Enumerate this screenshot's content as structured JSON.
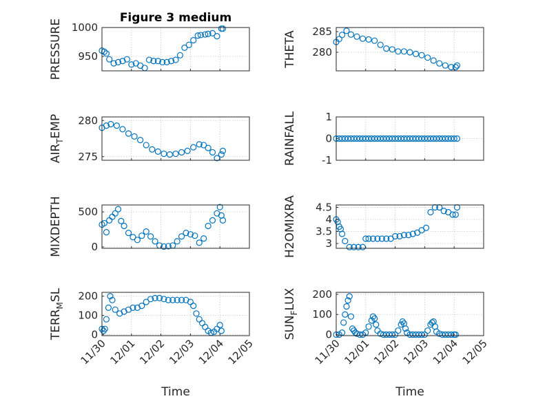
{
  "chart_data": [
    {
      "id": "pressure",
      "type": "scatter",
      "title": "Figure 3 medium",
      "ylabel": "PRESSURE",
      "ylabel_sub": "",
      "ylabel_tail": "",
      "ylim": [
        925,
        1000
      ],
      "yticks": [
        950,
        1000
      ],
      "xlim": [
        0,
        5
      ],
      "xticks": [
        "11/30",
        "12/01",
        "12/02",
        "12/03",
        "12/04",
        "12/05"
      ],
      "xlabel": "",
      "x": [
        0,
        0.08,
        0.15,
        0.25,
        0.4,
        0.55,
        0.7,
        0.85,
        1.0,
        1.15,
        1.3,
        1.45,
        1.6,
        1.75,
        1.9,
        2.05,
        2.2,
        2.35,
        2.5,
        2.65,
        2.8,
        2.95,
        3.1,
        3.25,
        3.35,
        3.5,
        3.6,
        3.75,
        3.9,
        4.05,
        4.1
      ],
      "y": [
        960,
        958,
        955,
        945,
        938,
        940,
        942,
        945,
        936,
        938,
        934,
        930,
        944,
        942,
        942,
        940,
        940,
        942,
        944,
        952,
        965,
        970,
        978,
        986,
        987,
        988,
        989,
        990,
        985,
        998,
        998
      ]
    },
    {
      "id": "theta",
      "type": "scatter",
      "title": "",
      "ylabel": "THETA",
      "ylabel_sub": "",
      "ylabel_tail": "",
      "ylim": [
        275.5,
        286
      ],
      "yticks": [
        280,
        285
      ],
      "xlim": [
        0,
        5
      ],
      "xticks": [
        "11/30",
        "12/01",
        "12/02",
        "12/03",
        "12/04",
        "12/05"
      ],
      "xlabel": "",
      "x": [
        0,
        0.1,
        0.2,
        0.35,
        0.5,
        0.7,
        0.9,
        1.1,
        1.3,
        1.5,
        1.7,
        1.9,
        2.1,
        2.3,
        2.5,
        2.7,
        2.9,
        3.1,
        3.3,
        3.5,
        3.7,
        3.9,
        4.05,
        4.1
      ],
      "y": [
        282.5,
        283.2,
        284.2,
        285.2,
        284.3,
        283.8,
        283.3,
        283.1,
        282.8,
        281.8,
        280.9,
        280.7,
        280.2,
        280.2,
        280.0,
        279.6,
        279.3,
        278.7,
        278.0,
        277.3,
        276.8,
        276.4,
        276.4,
        276.8
      ]
    },
    {
      "id": "air_temp",
      "type": "scatter",
      "title": "",
      "ylabel": "AIR",
      "ylabel_sub": "T",
      "ylabel_tail": "EMP",
      "ylim": [
        274.5,
        280.5
      ],
      "yticks": [
        275,
        280
      ],
      "xlim": [
        0,
        5
      ],
      "xticks": [
        "11/30",
        "12/01",
        "12/02",
        "12/03",
        "12/04",
        "12/05"
      ],
      "xlabel": "",
      "x": [
        0,
        0.15,
        0.3,
        0.5,
        0.7,
        0.9,
        1.1,
        1.3,
        1.5,
        1.7,
        1.9,
        2.1,
        2.3,
        2.5,
        2.7,
        2.9,
        3.1,
        3.3,
        3.45,
        3.6,
        3.75,
        3.9,
        4.05,
        4.1
      ],
      "y": [
        279.0,
        279.3,
        279.5,
        279.3,
        278.8,
        278.2,
        277.8,
        277.3,
        276.6,
        276.0,
        275.7,
        275.4,
        275.3,
        275.4,
        275.6,
        275.8,
        276.3,
        276.7,
        276.6,
        276.2,
        275.6,
        274.8,
        275.3,
        275.8
      ]
    },
    {
      "id": "rainfall",
      "type": "scatter",
      "title": "",
      "ylabel": "RAINFALL",
      "ylabel_sub": "",
      "ylabel_tail": "",
      "ylim": [
        -1,
        1
      ],
      "yticks": [
        -1,
        0,
        1
      ],
      "xlim": [
        0,
        5
      ],
      "xticks": [
        "11/30",
        "12/01",
        "12/02",
        "12/03",
        "12/04",
        "12/05"
      ],
      "xlabel": "",
      "x": [
        0,
        0.1,
        0.2,
        0.3,
        0.4,
        0.5,
        0.6,
        0.7,
        0.8,
        0.9,
        1.0,
        1.1,
        1.2,
        1.3,
        1.4,
        1.5,
        1.6,
        1.7,
        1.8,
        1.9,
        2.0,
        2.1,
        2.2,
        2.3,
        2.4,
        2.5,
        2.6,
        2.7,
        2.8,
        2.9,
        3.0,
        3.1,
        3.2,
        3.3,
        3.4,
        3.5,
        3.6,
        3.7,
        3.8,
        3.9,
        4.0,
        4.1
      ],
      "y": [
        0,
        0,
        0,
        0,
        0,
        0,
        0,
        0,
        0,
        0,
        0,
        0,
        0,
        0,
        0,
        0,
        0,
        0,
        0,
        0,
        0,
        0,
        0,
        0,
        0,
        0,
        0,
        0,
        0,
        0,
        0,
        0,
        0,
        0,
        0,
        0,
        0,
        0,
        0,
        0,
        0,
        0
      ]
    },
    {
      "id": "mixdepth",
      "type": "scatter",
      "title": "",
      "ylabel": "MIXDEPTH",
      "ylabel_sub": "",
      "ylabel_tail": "",
      "ylim": [
        -20,
        600
      ],
      "yticks": [
        0,
        500
      ],
      "xlim": [
        0,
        5
      ],
      "xticks": [
        "11/30",
        "12/01",
        "12/02",
        "12/03",
        "12/04",
        "12/05"
      ],
      "xlabel": "",
      "x": [
        0,
        0.08,
        0.15,
        0.25,
        0.35,
        0.45,
        0.55,
        0.65,
        0.75,
        0.9,
        1.05,
        1.2,
        1.35,
        1.5,
        1.65,
        1.8,
        1.95,
        2.1,
        2.25,
        2.4,
        2.55,
        2.7,
        2.85,
        3.0,
        3.15,
        3.3,
        3.45,
        3.6,
        3.75,
        3.9,
        4.0,
        4.05,
        4.1
      ],
      "y": [
        320,
        340,
        210,
        380,
        430,
        480,
        540,
        370,
        300,
        200,
        140,
        100,
        160,
        220,
        150,
        80,
        20,
        5,
        10,
        20,
        80,
        150,
        200,
        180,
        160,
        60,
        120,
        300,
        380,
        480,
        570,
        450,
        380
      ]
    },
    {
      "id": "h2omixra",
      "type": "scatter",
      "title": "",
      "ylabel": "H2OMIXRA",
      "ylabel_sub": "",
      "ylabel_tail": "",
      "ylim": [
        2.8,
        4.6
      ],
      "yticks": [
        3,
        3.5,
        4,
        4.5
      ],
      "xlim": [
        0,
        5
      ],
      "xticks": [
        "11/30",
        "12/01",
        "12/02",
        "12/03",
        "12/04",
        "12/05"
      ],
      "xlabel": "",
      "x": [
        0,
        0.05,
        0.1,
        0.15,
        0.2,
        0.3,
        0.45,
        0.6,
        0.75,
        0.9,
        1.0,
        1.1,
        1.25,
        1.4,
        1.55,
        1.7,
        1.85,
        2.0,
        2.15,
        2.3,
        2.45,
        2.6,
        2.75,
        2.9,
        3.05,
        3.2,
        3.35,
        3.5,
        3.65,
        3.8,
        3.95,
        4.05,
        4.1
      ],
      "y": [
        4.0,
        3.9,
        3.7,
        3.6,
        3.4,
        3.1,
        2.85,
        2.85,
        2.85,
        2.85,
        3.2,
        3.2,
        3.2,
        3.2,
        3.2,
        3.2,
        3.2,
        3.3,
        3.3,
        3.35,
        3.35,
        3.4,
        3.45,
        3.55,
        3.65,
        4.3,
        4.5,
        4.5,
        4.35,
        4.3,
        4.2,
        4.2,
        4.5
      ]
    },
    {
      "id": "terr_msl",
      "type": "scatter",
      "title": "",
      "ylabel": "TERR",
      "ylabel_sub": "M",
      "ylabel_tail": "SL",
      "ylim": [
        -5,
        220
      ],
      "yticks": [
        0,
        100,
        200
      ],
      "xlim": [
        0,
        5
      ],
      "xticks": [
        "11/30",
        "12/01",
        "12/02",
        "12/03",
        "12/04",
        "12/05"
      ],
      "xlabel": "Time",
      "x": [
        0,
        0.05,
        0.1,
        0.15,
        0.22,
        0.28,
        0.35,
        0.45,
        0.6,
        0.75,
        0.9,
        1.05,
        1.2,
        1.35,
        1.5,
        1.65,
        1.8,
        1.95,
        2.1,
        2.25,
        2.4,
        2.55,
        2.7,
        2.85,
        3.0,
        3.1,
        3.2,
        3.3,
        3.4,
        3.5,
        3.6,
        3.7,
        3.8,
        3.9,
        4.0,
        4.05
      ],
      "y": [
        30,
        20,
        30,
        80,
        140,
        200,
        180,
        130,
        110,
        120,
        130,
        140,
        140,
        150,
        170,
        185,
        190,
        190,
        185,
        180,
        180,
        180,
        180,
        180,
        170,
        150,
        110,
        80,
        60,
        40,
        20,
        10,
        15,
        30,
        50,
        20
      ]
    },
    {
      "id": "sun_flux",
      "type": "scatter",
      "title": "",
      "ylabel": "SUN",
      "ylabel_sub": "F",
      "ylabel_tail": "LUX",
      "ylim": [
        -5,
        210
      ],
      "yticks": [
        0,
        100,
        200
      ],
      "xlim": [
        0,
        5
      ],
      "xticks": [
        "11/30",
        "12/01",
        "12/02",
        "12/03",
        "12/04",
        "12/05"
      ],
      "xlabel": "Time",
      "x": [
        0,
        0.1,
        0.2,
        0.25,
        0.3,
        0.35,
        0.4,
        0.45,
        0.5,
        0.55,
        0.6,
        0.65,
        0.7,
        0.8,
        0.9,
        1.0,
        1.1,
        1.2,
        1.25,
        1.3,
        1.35,
        1.4,
        1.5,
        1.6,
        1.7,
        1.8,
        1.9,
        2.0,
        2.1,
        2.2,
        2.25,
        2.3,
        2.35,
        2.4,
        2.5,
        2.6,
        2.7,
        2.8,
        2.9,
        3.0,
        3.1,
        3.2,
        3.25,
        3.3,
        3.35,
        3.4,
        3.5,
        3.6,
        3.7,
        3.8,
        3.9,
        4.0,
        4.05
      ],
      "y": [
        0,
        0,
        10,
        60,
        100,
        140,
        170,
        190,
        90,
        30,
        20,
        10,
        5,
        0,
        0,
        10,
        40,
        70,
        90,
        80,
        50,
        20,
        5,
        0,
        0,
        0,
        0,
        0,
        20,
        50,
        65,
        55,
        30,
        10,
        0,
        0,
        0,
        0,
        0,
        0,
        20,
        50,
        60,
        65,
        40,
        15,
        5,
        0,
        0,
        0,
        0,
        0,
        0
      ]
    }
  ]
}
